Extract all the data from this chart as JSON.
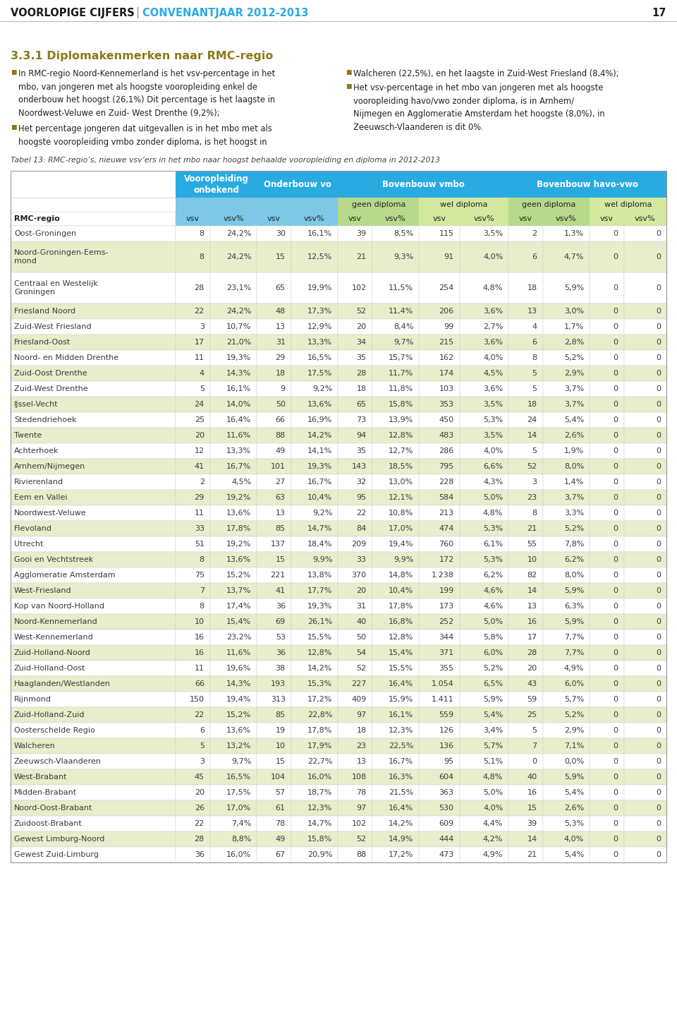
{
  "header_title_black": "VOORLOPIGE CIJFERS",
  "header_sep": " | ",
  "header_title_blue": "CONVENANTJAAR 2012-2013",
  "header_page": "17",
  "section_title": "3.3.1 Diplomakenmerken naar RMC-regio",
  "table_caption": "Tabel 13: RMC-regio’s, nieuwe vsv’ers in het mbo naar hoogst behaalde vooropleiding en diploma in 2012-2013",
  "rows": [
    [
      "Oost-Groningen",
      "8",
      "24,2%",
      "30",
      "16,1%",
      "39",
      "8,5%",
      "115",
      "3,5%",
      "2",
      "1,3%",
      "0",
      "0"
    ],
    [
      "Noord-Groningen-Eems-\nmond",
      "8",
      "24,2%",
      "15",
      "12,5%",
      "21",
      "9,3%",
      "91",
      "4,0%",
      "6",
      "4,7%",
      "0",
      "0"
    ],
    [
      "Centraal en Westelijk\nGroningen",
      "28",
      "23,1%",
      "65",
      "19,9%",
      "102",
      "11,5%",
      "254",
      "4,8%",
      "18",
      "5,9%",
      "0",
      "0"
    ],
    [
      "Friesland Noord",
      "22",
      "24,2%",
      "48",
      "17,3%",
      "52",
      "11,4%",
      "206",
      "3,6%",
      "13",
      "3,0%",
      "0",
      "0"
    ],
    [
      "Zuid-West Friesland",
      "3",
      "10,7%",
      "13",
      "12,9%",
      "20",
      "8,4%",
      "99",
      "2,7%",
      "4",
      "1,7%",
      "0",
      "0"
    ],
    [
      "Friesland-Oost",
      "17",
      "21,0%",
      "31",
      "13,3%",
      "34",
      "9,7%",
      "215",
      "3,6%",
      "6",
      "2,8%",
      "0",
      "0"
    ],
    [
      "Noord- en Midden Drenthe",
      "11",
      "19,3%",
      "29",
      "16,5%",
      "35",
      "15,7%",
      "162",
      "4,0%",
      "8",
      "5,2%",
      "0",
      "0"
    ],
    [
      "Zuid-Oost Drenthe",
      "4",
      "14,3%",
      "18",
      "17,5%",
      "28",
      "11,7%",
      "174",
      "4,5%",
      "5",
      "2,9%",
      "0",
      "0"
    ],
    [
      "Zuid-West Drenthe",
      "5",
      "16,1%",
      "9",
      "9,2%",
      "18",
      "11,8%",
      "103",
      "3,6%",
      "5",
      "3,7%",
      "0",
      "0"
    ],
    [
      "IJssel-Vecht",
      "24",
      "14,0%",
      "50",
      "13,6%",
      "65",
      "15,8%",
      "353",
      "3,5%",
      "18",
      "3,7%",
      "0",
      "0"
    ],
    [
      "Stedendriehoek",
      "25",
      "16,4%",
      "66",
      "16,9%",
      "73",
      "13,9%",
      "450",
      "5,3%",
      "24",
      "5,4%",
      "0",
      "0"
    ],
    [
      "Twente",
      "20",
      "11,6%",
      "88",
      "14,2%",
      "94",
      "12,8%",
      "483",
      "3,5%",
      "14",
      "2,6%",
      "0",
      "0"
    ],
    [
      "Achterhoek",
      "12",
      "13,3%",
      "49",
      "14,1%",
      "35",
      "12,7%",
      "286",
      "4,0%",
      "5",
      "1,9%",
      "0",
      "0"
    ],
    [
      "Arnhem/Nijmegen",
      "41",
      "16,7%",
      "101",
      "19,3%",
      "143",
      "18,5%",
      "795",
      "6,6%",
      "52",
      "8,0%",
      "0",
      "0"
    ],
    [
      "Rivierenland",
      "2",
      "4,5%",
      "27",
      "16,7%",
      "32",
      "13,0%",
      "228",
      "4,3%",
      "3",
      "1,4%",
      "0",
      "0"
    ],
    [
      "Eem en Vallei",
      "29",
      "19,2%",
      "63",
      "10,4%",
      "95",
      "12,1%",
      "584",
      "5,0%",
      "23",
      "3,7%",
      "0",
      "0"
    ],
    [
      "Noordwest-Veluwe",
      "11",
      "13,6%",
      "13",
      "9,2%",
      "22",
      "10,8%",
      "213",
      "4,8%",
      "8",
      "3,3%",
      "0",
      "0"
    ],
    [
      "Flevoland",
      "33",
      "17,8%",
      "85",
      "14,7%",
      "84",
      "17,0%",
      "474",
      "5,3%",
      "21",
      "5,2%",
      "0",
      "0"
    ],
    [
      "Utrecht",
      "51",
      "19,2%",
      "137",
      "18,4%",
      "209",
      "19,4%",
      "760",
      "6,1%",
      "55",
      "7,8%",
      "0",
      "0"
    ],
    [
      "Gooi en Vechtstreek",
      "8",
      "13,6%",
      "15",
      "9,9%",
      "33",
      "9,9%",
      "172",
      "5,3%",
      "10",
      "6,2%",
      "0",
      "0"
    ],
    [
      "Agglomeratie Amsterdam",
      "75",
      "15,2%",
      "221",
      "13,8%",
      "370",
      "14,8%",
      "1.238",
      "6,2%",
      "82",
      "8,0%",
      "0",
      "0"
    ],
    [
      "West-Friesland",
      "7",
      "13,7%",
      "41",
      "17,7%",
      "20",
      "10,4%",
      "199",
      "4,6%",
      "14",
      "5,9%",
      "0",
      "0"
    ],
    [
      "Kop van Noord-Holland",
      "8",
      "17,4%",
      "36",
      "19,3%",
      "31",
      "17,8%",
      "173",
      "4,6%",
      "13",
      "6,3%",
      "0",
      "0"
    ],
    [
      "Noord-Kennemerland",
      "10",
      "15,4%",
      "69",
      "26,1%",
      "40",
      "16,8%",
      "252",
      "5,0%",
      "16",
      "5,9%",
      "0",
      "0"
    ],
    [
      "West-Kennemerland",
      "16",
      "23,2%",
      "53",
      "15,5%",
      "50",
      "12,8%",
      "344",
      "5,8%",
      "17",
      "7,7%",
      "0",
      "0"
    ],
    [
      "Zuid-Holland-Noord",
      "16",
      "11,6%",
      "36",
      "12,8%",
      "54",
      "15,4%",
      "371",
      "6,0%",
      "28",
      "7,7%",
      "0",
      "0"
    ],
    [
      "Zuid-Holland-Oost",
      "11",
      "19,6%",
      "38",
      "14,2%",
      "52",
      "15,5%",
      "355",
      "5,2%",
      "20",
      "4,9%",
      "0",
      "0"
    ],
    [
      "Haaglanden/Westlanden",
      "66",
      "14,3%",
      "193",
      "15,3%",
      "227",
      "16,4%",
      "1.054",
      "6,5%",
      "43",
      "6,0%",
      "0",
      "0"
    ],
    [
      "Rijnmond",
      "150",
      "19,4%",
      "313",
      "17,2%",
      "409",
      "15,9%",
      "1.411",
      "5,9%",
      "59",
      "5,7%",
      "0",
      "0"
    ],
    [
      "Zuid-Holland-Zuid",
      "22",
      "15,2%",
      "85",
      "22,8%",
      "97",
      "16,1%",
      "559",
      "5,4%",
      "25",
      "5,2%",
      "0",
      "0"
    ],
    [
      "Oosterschelde Regio",
      "6",
      "13,6%",
      "19",
      "17,8%",
      "18",
      "12,3%",
      "126",
      "3,4%",
      "5",
      "2,9%",
      "0",
      "0"
    ],
    [
      "Walcheren",
      "5",
      "13,2%",
      "10",
      "17,9%",
      "23",
      "22,5%",
      "136",
      "5,7%",
      "7",
      "7,1%",
      "0",
      "0"
    ],
    [
      "Zeeuwsch-Vlaanderen",
      "3",
      "9,7%",
      "15",
      "22,7%",
      "13",
      "16,7%",
      "95",
      "5,1%",
      "0",
      "0,0%",
      "0",
      "0"
    ],
    [
      "West-Brabant",
      "45",
      "16,5%",
      "104",
      "16,0%",
      "108",
      "16,3%",
      "604",
      "4,8%",
      "40",
      "5,9%",
      "0",
      "0"
    ],
    [
      "Midden-Brabant",
      "20",
      "17,5%",
      "57",
      "18,7%",
      "78",
      "21,5%",
      "363",
      "5,0%",
      "16",
      "5,4%",
      "0",
      "0"
    ],
    [
      "Noord-Oost-Brabant",
      "26",
      "17,0%",
      "61",
      "12,3%",
      "97",
      "16,4%",
      "530",
      "4,0%",
      "15",
      "2,6%",
      "0",
      "0"
    ],
    [
      "Zuidoost-Brabant",
      "22",
      "7,4%",
      "78",
      "14,7%",
      "102",
      "14,2%",
      "609",
      "4,4%",
      "39",
      "5,3%",
      "0",
      "0"
    ],
    [
      "Gewest Limburg-Noord",
      "28",
      "8,8%",
      "49",
      "15,8%",
      "52",
      "14,9%",
      "444",
      "4,2%",
      "14",
      "4,0%",
      "0",
      "0"
    ],
    [
      "Gewest Zuid-Limburg",
      "36",
      "16,0%",
      "67",
      "20,9%",
      "88",
      "17,2%",
      "473",
      "4,9%",
      "21",
      "5,4%",
      "0",
      "0"
    ]
  ],
  "header_bg": "#29abe2",
  "header_bg_mid": "#7dc8e6",
  "subheader_bg_dark": "#b8d98c",
  "subheader_bg_light": "#d4e8a0",
  "row_bg_even": "#ffffff",
  "row_bg_odd": "#e8eecc",
  "header_text_color": "#ffffff",
  "section_color": "#8b7a1a",
  "bullet_color": "#8b7a1a",
  "header_black_color": "#1a1a1a",
  "header_blue_color": "#29abe2",
  "data_text_color": "#3a3a3a",
  "header3_bg_a": "#c8d878",
  "header3_bg_b": "#dce890"
}
